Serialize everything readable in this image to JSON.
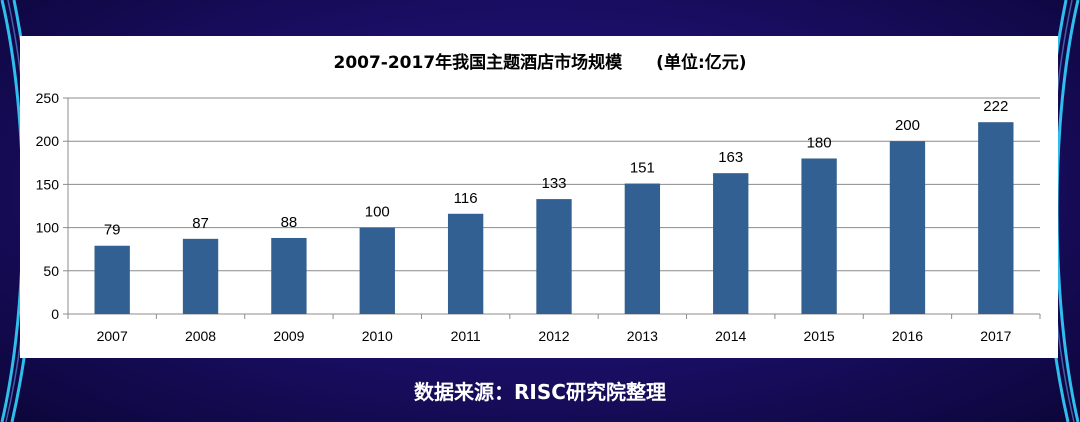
{
  "chart_data": {
    "type": "bar",
    "title": "2007-2017年我国主题酒店市场规模　　(单位:亿元)",
    "categories": [
      "2007",
      "2008",
      "2009",
      "2010",
      "2011",
      "2012",
      "2013",
      "2014",
      "2015",
      "2016",
      "2017"
    ],
    "series": [
      {
        "values": [
          79,
          87,
          88,
          100,
          116,
          133,
          151,
          163,
          180,
          200,
          222
        ]
      }
    ],
    "ylim": [
      0,
      250
    ],
    "yticks": [
      0,
      50,
      100,
      150,
      200,
      250
    ],
    "xlabel": "",
    "ylabel": "",
    "grid": true,
    "legend": "none",
    "bar_color": "#336092",
    "show_data_labels": true
  },
  "footer": {
    "source": "数据来源：RISC研究院整理"
  },
  "colors": {
    "background": "#1c0f6b",
    "accent": "#2fd0ff"
  }
}
